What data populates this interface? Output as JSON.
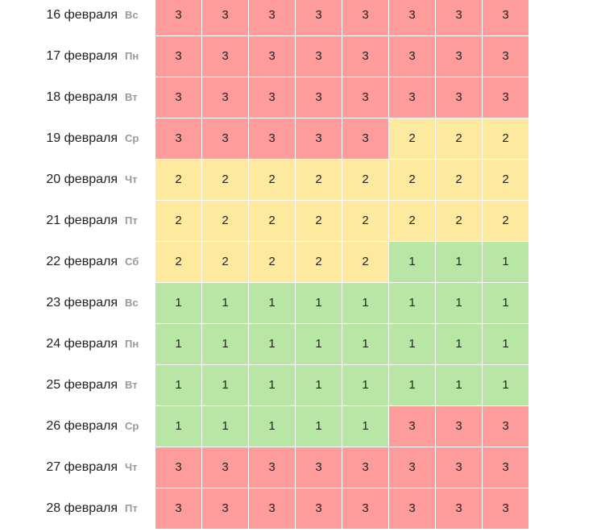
{
  "colors": {
    "level_3": "#fe9c9b",
    "level_2": "#feea9f",
    "level_1": "#b8e6a4"
  },
  "rows": [
    {
      "date": "16 февраля",
      "dow": "Вс",
      "values": [
        3,
        3,
        3,
        3,
        3,
        3,
        3,
        3
      ]
    },
    {
      "date": "17 февраля",
      "dow": "Пн",
      "values": [
        3,
        3,
        3,
        3,
        3,
        3,
        3,
        3
      ]
    },
    {
      "date": "18 февраля",
      "dow": "Вт",
      "values": [
        3,
        3,
        3,
        3,
        3,
        3,
        3,
        3
      ]
    },
    {
      "date": "19 февраля",
      "dow": "Ср",
      "values": [
        3,
        3,
        3,
        3,
        3,
        2,
        2,
        2
      ]
    },
    {
      "date": "20 февраля",
      "dow": "Чт",
      "values": [
        2,
        2,
        2,
        2,
        2,
        2,
        2,
        2
      ]
    },
    {
      "date": "21 февраля",
      "dow": "Пт",
      "values": [
        2,
        2,
        2,
        2,
        2,
        2,
        2,
        2
      ]
    },
    {
      "date": "22 февраля",
      "dow": "Сб",
      "values": [
        2,
        2,
        2,
        2,
        2,
        1,
        1,
        1
      ]
    },
    {
      "date": "23 февраля",
      "dow": "Вс",
      "values": [
        1,
        1,
        1,
        1,
        1,
        1,
        1,
        1
      ]
    },
    {
      "date": "24 февраля",
      "dow": "Пн",
      "values": [
        1,
        1,
        1,
        1,
        1,
        1,
        1,
        1
      ]
    },
    {
      "date": "25 февраля",
      "dow": "Вт",
      "values": [
        1,
        1,
        1,
        1,
        1,
        1,
        1,
        1
      ]
    },
    {
      "date": "26 февраля",
      "dow": "Ср",
      "values": [
        1,
        1,
        1,
        1,
        1,
        3,
        3,
        3
      ]
    },
    {
      "date": "27 февраля",
      "dow": "Чт",
      "values": [
        3,
        3,
        3,
        3,
        3,
        3,
        3,
        3
      ]
    },
    {
      "date": "28 февраля",
      "dow": "Пт",
      "values": [
        3,
        3,
        3,
        3,
        3,
        3,
        3,
        3
      ]
    }
  ]
}
